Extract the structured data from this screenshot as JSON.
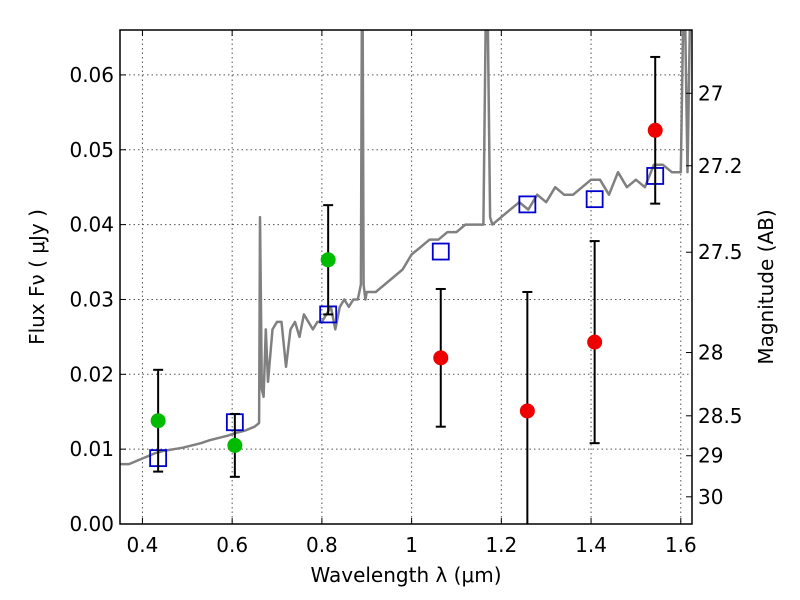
{
  "chart_data": {
    "type": "scatter",
    "title": "",
    "xlabel": "Wavelength  λ (μm)",
    "ylabel": "Flux  Fν  ( μJy )",
    "y2label": "Magnitude (AB)",
    "xlim": [
      0.35,
      1.625
    ],
    "ylim": [
      0.0,
      0.066
    ],
    "grid": true,
    "xticks": [
      0.4,
      0.6,
      0.8,
      1.0,
      1.2,
      1.4,
      1.6
    ],
    "xtick_labels": [
      "0.4",
      "0.6",
      "0.8",
      "1",
      "1.2",
      "1.4",
      "1.6"
    ],
    "yticks": [
      0.0,
      0.01,
      0.02,
      0.03,
      0.04,
      0.05,
      0.06
    ],
    "ytick_labels": [
      "0.00",
      "0.01",
      "0.02",
      "0.03",
      "0.04",
      "0.05",
      "0.06"
    ],
    "y2ticks": [
      27,
      27.2,
      27.5,
      28,
      28.5,
      29,
      30
    ],
    "y2tick_labels": [
      "27",
      "27.2",
      "27.5",
      "28",
      "28.5",
      "29",
      "30"
    ],
    "colors": {
      "model": "#808080",
      "detected": "#00bb00",
      "upper": "#ee0000",
      "synthetic": "#0000cc"
    },
    "series": [
      {
        "kind": "model_spectrum",
        "x": [
          0.35,
          0.37,
          0.39,
          0.41,
          0.43,
          0.45,
          0.47,
          0.49,
          0.51,
          0.53,
          0.55,
          0.57,
          0.59,
          0.61,
          0.63,
          0.65,
          0.66,
          0.662,
          0.664,
          0.666,
          0.67,
          0.675,
          0.68,
          0.69,
          0.7,
          0.71,
          0.72,
          0.73,
          0.74,
          0.75,
          0.76,
          0.77,
          0.78,
          0.79,
          0.8,
          0.81,
          0.82,
          0.83,
          0.84,
          0.85,
          0.86,
          0.87,
          0.88,
          0.887,
          0.889,
          0.891,
          0.893,
          0.895,
          0.897,
          0.9,
          0.92,
          0.94,
          0.96,
          0.98,
          1.0,
          1.02,
          1.04,
          1.06,
          1.08,
          1.1,
          1.12,
          1.14,
          1.16,
          1.165,
          1.17,
          1.175,
          1.18,
          1.2,
          1.22,
          1.24,
          1.26,
          1.28,
          1.3,
          1.32,
          1.34,
          1.36,
          1.38,
          1.4,
          1.42,
          1.44,
          1.46,
          1.48,
          1.5,
          1.52,
          1.54,
          1.56,
          1.58,
          1.6,
          1.605,
          1.61,
          1.615,
          1.62,
          1.625
        ],
        "y": [
          0.008,
          0.008,
          0.0085,
          0.009,
          0.0095,
          0.0098,
          0.01,
          0.0102,
          0.0105,
          0.0108,
          0.0112,
          0.0115,
          0.0118,
          0.0122,
          0.0125,
          0.013,
          0.0135,
          0.041,
          0.03,
          0.018,
          0.017,
          0.026,
          0.019,
          0.026,
          0.027,
          0.027,
          0.021,
          0.026,
          0.027,
          0.025,
          0.028,
          0.027,
          0.026,
          0.027,
          0.027,
          0.028,
          0.029,
          0.026,
          0.029,
          0.03,
          0.029,
          0.03,
          0.03,
          0.032,
          0.066,
          0.066,
          0.032,
          0.031,
          0.03,
          0.031,
          0.031,
          0.032,
          0.033,
          0.034,
          0.036,
          0.037,
          0.038,
          0.038,
          0.039,
          0.039,
          0.04,
          0.04,
          0.04,
          0.066,
          0.066,
          0.041,
          0.04,
          0.041,
          0.042,
          0.043,
          0.042,
          0.044,
          0.043,
          0.045,
          0.044,
          0.044,
          0.045,
          0.046,
          0.046,
          0.044,
          0.047,
          0.045,
          0.046,
          0.045,
          0.048,
          0.048,
          0.047,
          0.047,
          0.066,
          0.066,
          0.047,
          0.066,
          0.066
        ]
      },
      {
        "kind": "detected_photometry",
        "x": [
          0.435,
          0.606,
          0.814
        ],
        "y": [
          0.0138,
          0.0105,
          0.0353
        ],
        "err": [
          0.0068,
          0.0042,
          0.0073
        ]
      },
      {
        "kind": "upper_limit_photometry",
        "x": [
          1.065,
          1.258,
          1.408,
          1.543
        ],
        "y": [
          0.0222,
          0.0151,
          0.0243,
          0.0526
        ],
        "err": [
          0.0092,
          0.0159,
          0.0135,
          0.0098
        ]
      },
      {
        "kind": "synthetic_photometry",
        "x": [
          0.435,
          0.606,
          0.814,
          1.065,
          1.258,
          1.408,
          1.543
        ],
        "y": [
          0.0088,
          0.0136,
          0.028,
          0.0364,
          0.0427,
          0.0434,
          0.0465
        ]
      }
    ]
  }
}
